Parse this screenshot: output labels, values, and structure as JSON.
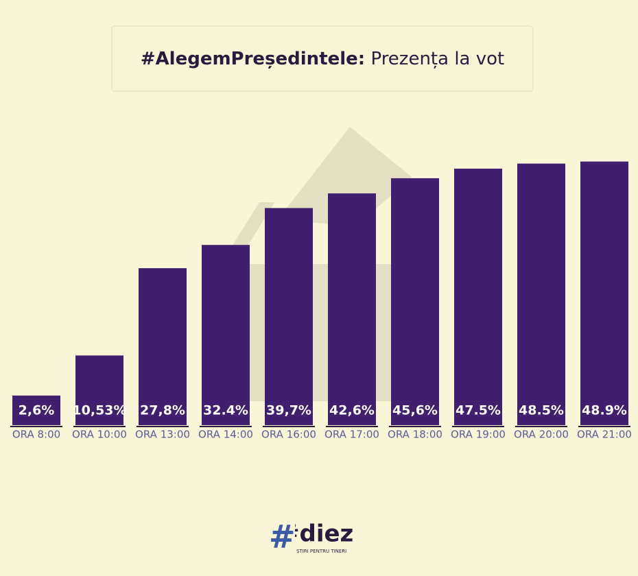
{
  "chart_data": {
    "type": "bar",
    "title": "#AlegemPreședintele:",
    "subtitle": "Prezența la vot",
    "categories": [
      "ORA 8:00",
      "ORA 10:00",
      "ORA 13:00",
      "ORA 14:00",
      "ORA 16:00",
      "ORA 17:00",
      "ORA 18:00",
      "ORA 19:00",
      "ORA 20:00",
      "ORA 21:00"
    ],
    "values": [
      2.6,
      10.53,
      27.8,
      32.4,
      39.7,
      42.6,
      45.6,
      47.5,
      48.5,
      48.9
    ],
    "value_labels": [
      "2,6%",
      "10,53%",
      "27,8%",
      "32.4%",
      "39,7%",
      "42,6%",
      "45,6%",
      "47.5%",
      "48.5%",
      "48.9%"
    ],
    "color": "#3f1f6e"
  },
  "logo": {
    "name": "#diez",
    "tagline": "ȘTIRI PENTRU TINERI"
  }
}
